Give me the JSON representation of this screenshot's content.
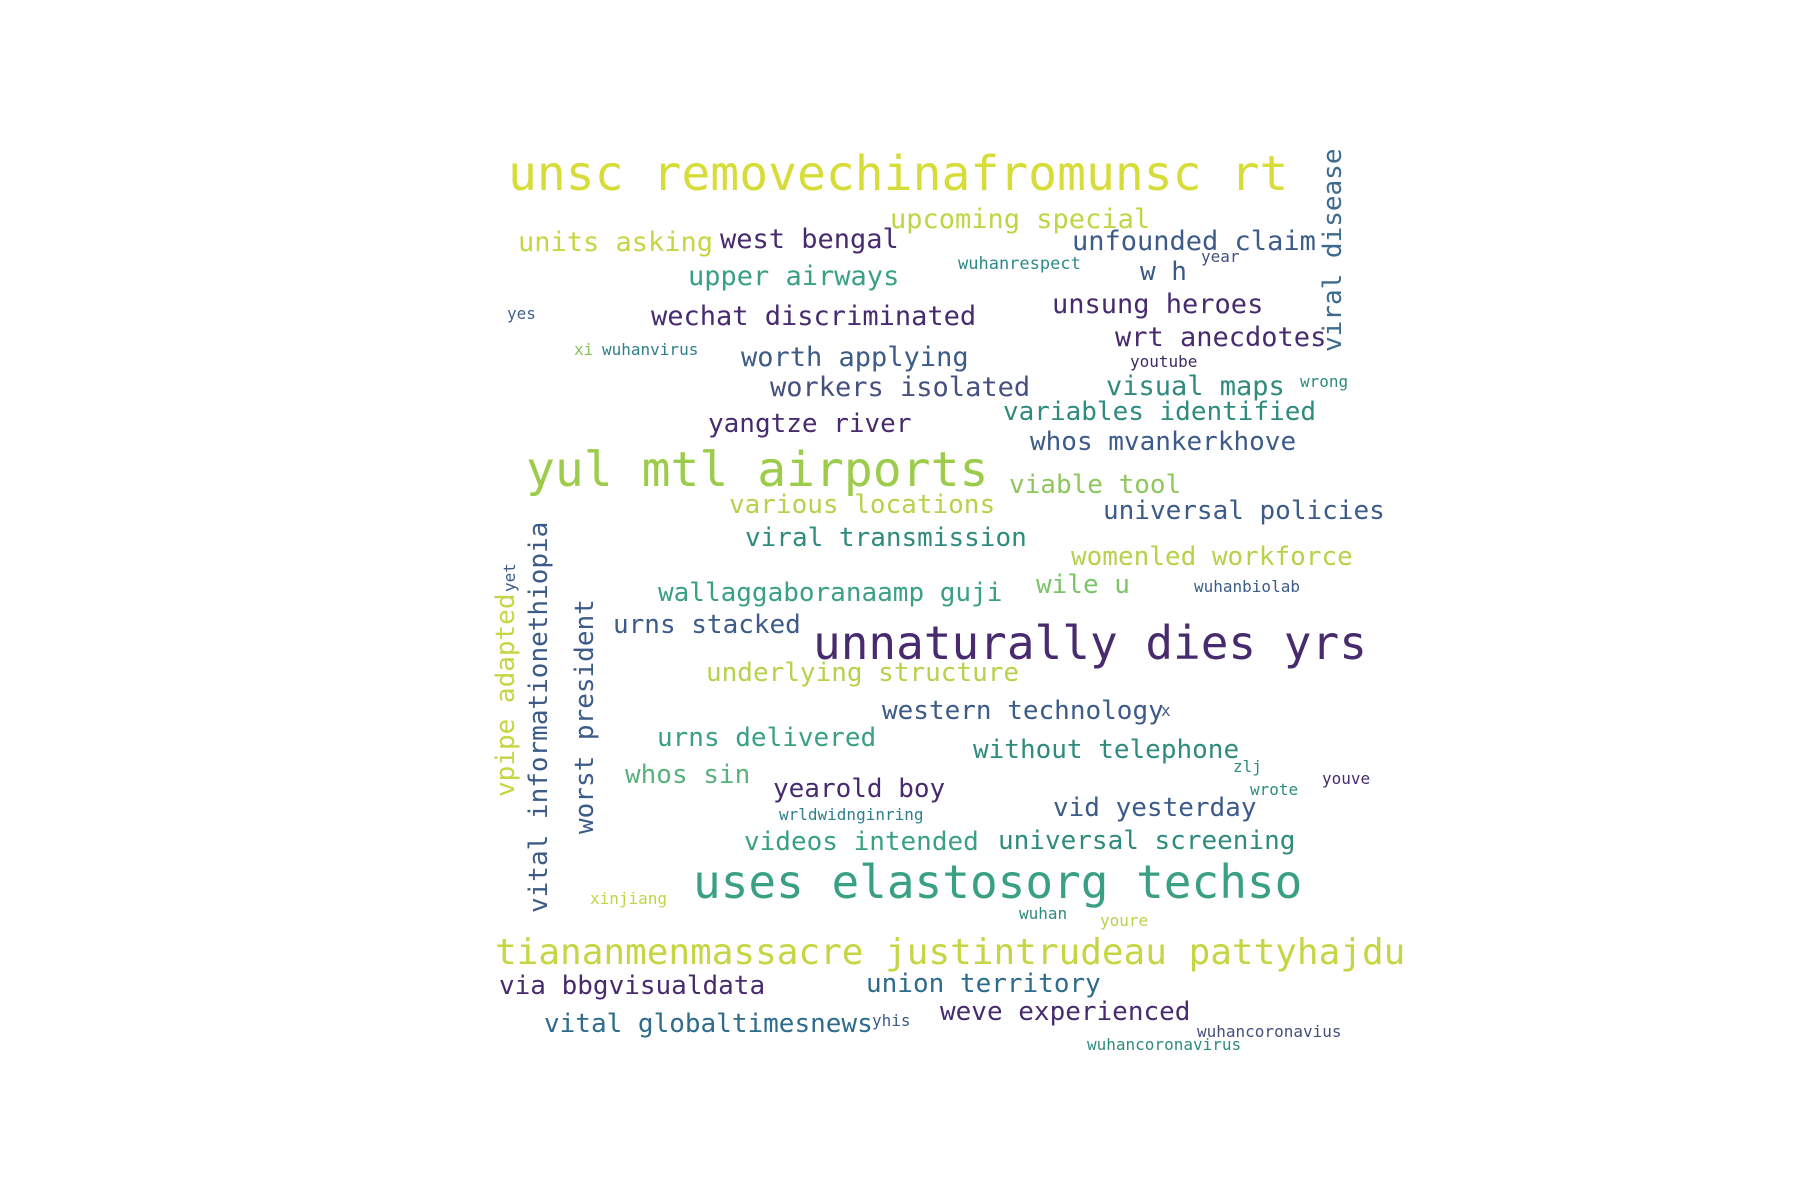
{
  "words": [
    {
      "text": "unsc removechinafromunsc rt",
      "color": "#d7dd38"
    },
    {
      "text": "upcoming special",
      "color": "#c0d546"
    },
    {
      "text": "viral disease",
      "color": "#3e6b8b"
    },
    {
      "text": "units asking",
      "color": "#c6d543"
    },
    {
      "text": "west bengal",
      "color": "#472b6e"
    },
    {
      "text": "unfounded claim",
      "color": "#3c5b88"
    },
    {
      "text": "year",
      "color": "#45507f"
    },
    {
      "text": "wuhanrespect",
      "color": "#2d8a8a"
    },
    {
      "text": "w h",
      "color": "#3a5a86"
    },
    {
      "text": "upper airways",
      "color": "#3aa084"
    },
    {
      "text": "yes",
      "color": "#45608d"
    },
    {
      "text": "wechat discriminated",
      "color": "#472b6e"
    },
    {
      "text": "unsung heroes",
      "color": "#472b6e"
    },
    {
      "text": "xi",
      "color": "#87c45a"
    },
    {
      "text": "wuhanvirus",
      "color": "#2e7f8c"
    },
    {
      "text": "wrt anecdotes",
      "color": "#472b6e"
    },
    {
      "text": "worth applying",
      "color": "#3c5b88"
    },
    {
      "text": "youtube",
      "color": "#3c2c62"
    },
    {
      "text": "workers isolated",
      "color": "#45507f"
    },
    {
      "text": "visual maps",
      "color": "#2e8b7e"
    },
    {
      "text": "wrong",
      "color": "#2e8b7e"
    },
    {
      "text": "variables identified",
      "color": "#2e8b7e"
    },
    {
      "text": "yangtze river",
      "color": "#472b6e"
    },
    {
      "text": "whos mvankerkhove",
      "color": "#3c5b88"
    },
    {
      "text": "yul mtl airports",
      "color": "#9ccc4a"
    },
    {
      "text": "viable tool",
      "color": "#8fc65d"
    },
    {
      "text": "various locations",
      "color": "#b6d24b"
    },
    {
      "text": "universal policies",
      "color": "#3c5b88"
    },
    {
      "text": "viral transmission",
      "color": "#2e8b7e"
    },
    {
      "text": "womenled workforce",
      "color": "#b6d24b"
    },
    {
      "text": "yet",
      "color": "#3c5b88"
    },
    {
      "text": "vital informationethiopia",
      "color": "#3c5b88"
    },
    {
      "text": "vpipe adapted",
      "color": "#c6d543"
    },
    {
      "text": "wile u",
      "color": "#7dc36a"
    },
    {
      "text": "wuhanbiolab",
      "color": "#3c5b88"
    },
    {
      "text": "wallaggaboranaamp guji",
      "color": "#3aa084"
    },
    {
      "text": "worst president",
      "color": "#3c5b88"
    },
    {
      "text": "urns stacked",
      "color": "#3c5b88"
    },
    {
      "text": "unnaturally dies yrs",
      "color": "#472b6e"
    },
    {
      "text": "underlying structure",
      "color": "#b6d24b"
    },
    {
      "text": "western technology",
      "color": "#3c5b88"
    },
    {
      "text": "x",
      "color": "#45608d"
    },
    {
      "text": "urns delivered",
      "color": "#3aa084"
    },
    {
      "text": "without telephone",
      "color": "#2e8b7e"
    },
    {
      "text": "whos sin",
      "color": "#59b27a"
    },
    {
      "text": "zlj",
      "color": "#2e8b7e"
    },
    {
      "text": "yearold boy",
      "color": "#472b6e"
    },
    {
      "text": "youve",
      "color": "#472b6e"
    },
    {
      "text": "wrote",
      "color": "#2e8b7e"
    },
    {
      "text": "vid yesterday",
      "color": "#3c5b88"
    },
    {
      "text": "wrldwidnginring",
      "color": "#2e7f8c"
    },
    {
      "text": "videos intended",
      "color": "#3aa084"
    },
    {
      "text": "universal screening",
      "color": "#2e8b7e"
    },
    {
      "text": "uses elastosorg techso",
      "color": "#3aa084"
    },
    {
      "text": "xinjiang",
      "color": "#c0d546"
    },
    {
      "text": "wuhan",
      "color": "#2e8b7e"
    },
    {
      "text": "youre",
      "color": "#b6d24b"
    },
    {
      "text": "tiananmenmassacre justintrudeau pattyhajdu",
      "color": "#c6d543"
    },
    {
      "text": "via bbgvisualdata",
      "color": "#472b6e"
    },
    {
      "text": "union territory",
      "color": "#2e6b8c"
    },
    {
      "text": "weve experienced",
      "color": "#472b6e"
    },
    {
      "text": "vital globaltimesnews",
      "color": "#2e6b8c"
    },
    {
      "text": "yhis",
      "color": "#3c5b88"
    },
    {
      "text": "wuhancoronavius",
      "color": "#45507f"
    },
    {
      "text": "wuhancoronavirus",
      "color": "#2e8b7e"
    }
  ]
}
